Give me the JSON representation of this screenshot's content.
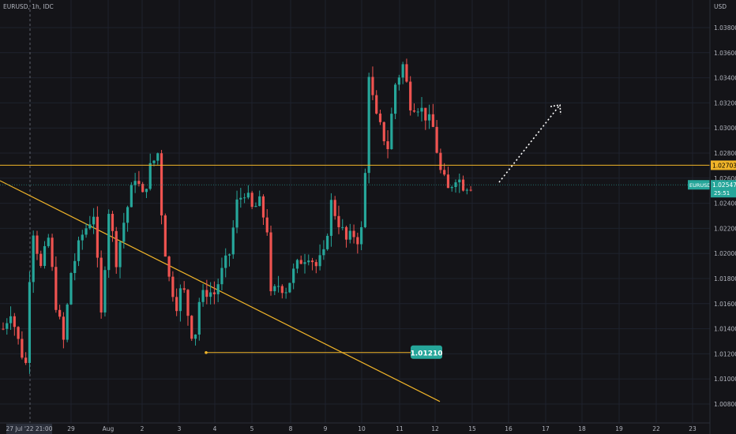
{
  "header": {
    "symbol_label": "EURUSD, 1h, IDC"
  },
  "price_axis": {
    "unit_label": "USD"
  },
  "chart_data": {
    "type": "candlestick",
    "title": "EURUSD, 1h, IDC",
    "ylabel": "USD",
    "ylim": [
      1.007,
      1.0393
    ],
    "y_ticks": [
      "1.03800",
      "1.03600",
      "1.03400",
      "1.03200",
      "1.03000",
      "1.02800",
      "1.02600",
      "1.02400",
      "1.02200",
      "1.02000",
      "1.01800",
      "1.01600",
      "1.01400",
      "1.01200",
      "1.01000",
      "1.00800"
    ],
    "x_ticks": [
      "29",
      "Aug",
      "2",
      "3",
      "4",
      "5",
      "8",
      "9",
      "10",
      "11",
      "12",
      "15",
      "16",
      "17",
      "18",
      "19",
      "22",
      "23"
    ],
    "crosshair_label": "27 Jul '22   21:00",
    "colors": {
      "up": "#26a69a",
      "down": "#ef5350",
      "level": "#f0b429",
      "trendline": "#f0b429",
      "last_price": "#26a69a",
      "background": "#141418"
    },
    "price_path": [
      {
        "t": 0,
        "p": 1.014
      },
      {
        "t": 1,
        "p": 1.0155
      },
      {
        "t": 2.2,
        "p": 1.0125
      },
      {
        "t": 3,
        "p": 1.0112
      },
      {
        "t": 3.8,
        "p": 1.0225
      },
      {
        "t": 5,
        "p": 1.0188
      },
      {
        "t": 6,
        "p": 1.0212
      },
      {
        "t": 7,
        "p": 1.016
      },
      {
        "t": 8,
        "p": 1.013
      },
      {
        "t": 9,
        "p": 1.0185
      },
      {
        "t": 10.5,
        "p": 1.0215
      },
      {
        "t": 12,
        "p": 1.0232
      },
      {
        "t": 13,
        "p": 1.015
      },
      {
        "t": 14,
        "p": 1.0235
      },
      {
        "t": 15,
        "p": 1.0195
      },
      {
        "t": 16,
        "p": 1.0225
      },
      {
        "t": 17.5,
        "p": 1.0262
      },
      {
        "t": 18.5,
        "p": 1.0245
      },
      {
        "t": 19.5,
        "p": 1.0268
      },
      {
        "t": 20.5,
        "p": 1.028
      },
      {
        "t": 21.2,
        "p": 1.0215
      },
      {
        "t": 22,
        "p": 1.018
      },
      {
        "t": 23,
        "p": 1.016
      },
      {
        "t": 23.8,
        "p": 1.0175
      },
      {
        "t": 24.5,
        "p": 1.0152
      },
      {
        "t": 25.3,
        "p": 1.0128
      },
      {
        "t": 26,
        "p": 1.0162
      },
      {
        "t": 27,
        "p": 1.017
      },
      {
        "t": 28,
        "p": 1.0168
      },
      {
        "t": 29,
        "p": 1.0185
      },
      {
        "t": 30,
        "p": 1.02
      },
      {
        "t": 31,
        "p": 1.024
      },
      {
        "t": 32,
        "p": 1.025
      },
      {
        "t": 33,
        "p": 1.0235
      },
      {
        "t": 34,
        "p": 1.024
      },
      {
        "t": 35,
        "p": 1.022
      },
      {
        "t": 35.5,
        "p": 1.0165
      },
      {
        "t": 36.5,
        "p": 1.0175
      },
      {
        "t": 37.5,
        "p": 1.0172
      },
      {
        "t": 38.5,
        "p": 1.0185
      },
      {
        "t": 39.5,
        "p": 1.0195
      },
      {
        "t": 40.5,
        "p": 1.02
      },
      {
        "t": 41.5,
        "p": 1.019
      },
      {
        "t": 42.5,
        "p": 1.0198
      },
      {
        "t": 43.5,
        "p": 1.024
      },
      {
        "t": 44.5,
        "p": 1.0225
      },
      {
        "t": 45.5,
        "p": 1.021
      },
      {
        "t": 46.5,
        "p": 1.0215
      },
      {
        "t": 47.3,
        "p": 1.021
      },
      {
        "t": 47.8,
        "p": 1.023
      },
      {
        "t": 48.5,
        "p": 1.0345
      },
      {
        "t": 49.3,
        "p": 1.031
      },
      {
        "t": 50,
        "p": 1.03
      },
      {
        "t": 51,
        "p": 1.0285
      },
      {
        "t": 52,
        "p": 1.0335
      },
      {
        "t": 53,
        "p": 1.035
      },
      {
        "t": 54,
        "p": 1.032
      },
      {
        "t": 55,
        "p": 1.0318
      },
      {
        "t": 56,
        "p": 1.031
      },
      {
        "t": 57,
        "p": 1.03
      },
      {
        "t": 58,
        "p": 1.0265
      },
      {
        "t": 59,
        "p": 1.025
      },
      {
        "t": 60,
        "p": 1.0262
      },
      {
        "t": 61,
        "p": 1.0255
      }
    ],
    "key_level": {
      "value": 1.02703,
      "label": "1.02703"
    },
    "support_marker": {
      "value": 1.0121,
      "label": "1.01210",
      "from": "4",
      "to": "10"
    },
    "last_price": {
      "value": 1.02547,
      "label": "1.02547",
      "symbol": "EURUSD",
      "countdown": "25:51"
    },
    "trendline": {
      "from": {
        "date": "27 Jul",
        "price": 1.0258
      },
      "to": {
        "date": "12",
        "price": 1.0082
      }
    },
    "projection_arrow": {
      "from": {
        "date": "15",
        "price": 1.0255
      },
      "to": {
        "date": "17",
        "price": 1.032
      }
    }
  }
}
